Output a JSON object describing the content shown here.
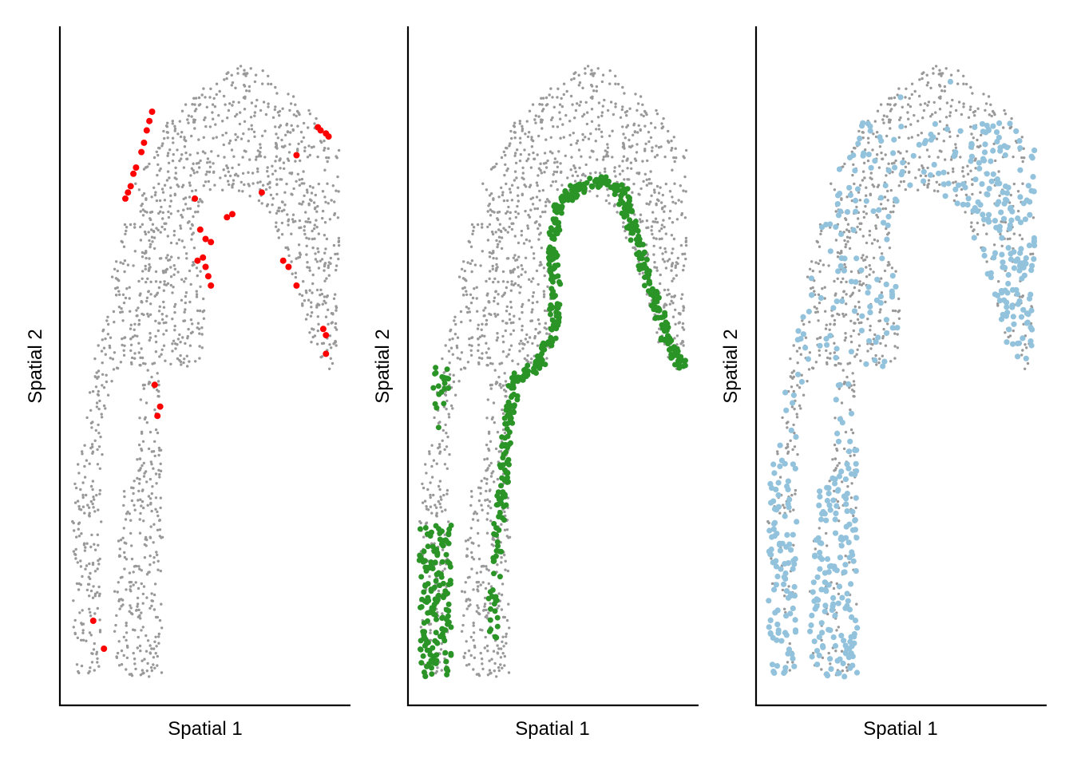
{
  "figure": {
    "background": "#ffffff",
    "gray_color": "#999999",
    "point_style": "small grey background points, larger colored highlight points"
  },
  "chart_data": [
    {
      "type": "scatter",
      "title": "",
      "xlabel": "Spatial 1",
      "ylabel": "Spatial 2",
      "axis_ticks": false,
      "grid": false,
      "legend": "none",
      "xlim": [
        0,
        1
      ],
      "ylim": [
        0,
        1
      ],
      "series": [
        {
          "color": "#999999",
          "role": "background",
          "regions": "all"
        },
        {
          "color": "#ff0000",
          "role": "highlight",
          "points": [
            [
              0.08,
              0.09
            ],
            [
              0.12,
              0.045
            ],
            [
              0.31,
              0.47
            ],
            [
              0.33,
              0.435
            ],
            [
              0.32,
              0.42
            ],
            [
              0.47,
              0.67
            ],
            [
              0.49,
              0.675
            ],
            [
              0.5,
              0.66
            ],
            [
              0.51,
              0.645
            ],
            [
              0.52,
              0.63
            ],
            [
              0.48,
              0.72
            ],
            [
              0.5,
              0.705
            ],
            [
              0.52,
              0.7
            ],
            [
              0.58,
              0.74
            ],
            [
              0.6,
              0.745
            ],
            [
              0.71,
              0.78
            ],
            [
              0.79,
              0.67
            ],
            [
              0.81,
              0.66
            ],
            [
              0.84,
              0.63
            ],
            [
              0.95,
              0.55
            ],
            [
              0.94,
              0.56
            ],
            [
              0.95,
              0.52
            ],
            [
              0.23,
              0.81
            ],
            [
              0.24,
              0.82
            ],
            [
              0.26,
              0.845
            ],
            [
              0.27,
              0.86
            ],
            [
              0.28,
              0.88
            ],
            [
              0.29,
              0.895
            ],
            [
              0.3,
              0.91
            ],
            [
              0.2,
              0.77
            ],
            [
              0.21,
              0.78
            ],
            [
              0.22,
              0.79
            ],
            [
              0.46,
              0.77
            ],
            [
              0.84,
              0.84
            ],
            [
              0.92,
              0.885
            ],
            [
              0.93,
              0.88
            ],
            [
              0.95,
              0.875
            ],
            [
              0.96,
              0.87
            ]
          ]
        }
      ]
    },
    {
      "type": "scatter",
      "title": "",
      "xlabel": "Spatial 1",
      "ylabel": "Spatial 2",
      "axis_ticks": false,
      "grid": false,
      "legend": "none",
      "xlim": [
        0,
        1
      ],
      "ylim": [
        0,
        1
      ],
      "series": [
        {
          "color": "#999999",
          "role": "background",
          "regions": "all"
        },
        {
          "color": "#2a9426",
          "role": "highlight",
          "regions": "inner band, left strip edges, bottom-left cluster"
        }
      ]
    },
    {
      "type": "scatter",
      "title": "",
      "xlabel": "Spatial 1",
      "ylabel": "Spatial 2",
      "axis_ticks": false,
      "grid": false,
      "legend": "none",
      "xlim": [
        0,
        1
      ],
      "ylim": [
        0,
        1
      ],
      "series": [
        {
          "color": "#999999",
          "role": "background",
          "regions": "all"
        },
        {
          "color": "#93c3dc",
          "role": "highlight",
          "regions": "lower strips, middle band, right arm"
        }
      ]
    }
  ]
}
